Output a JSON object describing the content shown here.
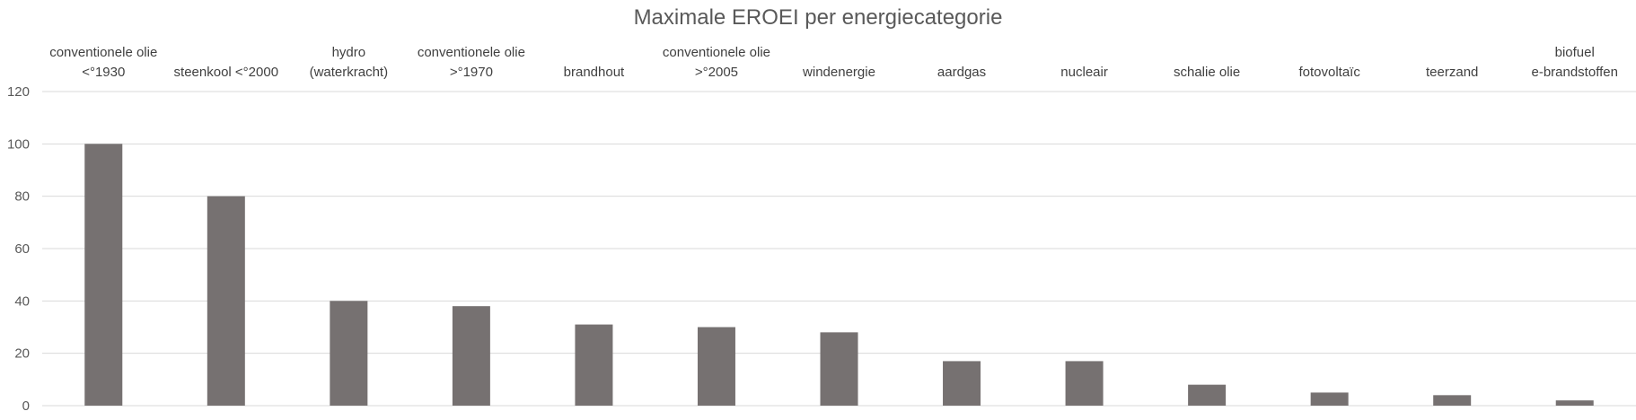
{
  "chart_data": {
    "type": "bar",
    "title": "Maximale EROEI per energiecategorie",
    "xlabel": "",
    "ylabel": "",
    "ylim": [
      0,
      120
    ],
    "yticks": [
      0,
      20,
      40,
      60,
      80,
      100,
      120
    ],
    "grid": true,
    "category_axis_position": "top",
    "bar_color": "#767171",
    "categories": [
      [
        "conventionele olie",
        "<°1930"
      ],
      [
        "steenkool <°2000"
      ],
      [
        "hydro",
        "(waterkracht)"
      ],
      [
        "conventionele olie",
        ">°1970"
      ],
      [
        "brandhout"
      ],
      [
        "conventionele olie",
        ">°2005"
      ],
      [
        "windenergie"
      ],
      [
        "aardgas"
      ],
      [
        "nucleair"
      ],
      [
        "schalie olie"
      ],
      [
        "fotovoltaïc"
      ],
      [
        "teerzand"
      ],
      [
        "biofuel",
        "e-brandstoffen"
      ]
    ],
    "values": [
      100,
      80,
      40,
      38,
      31,
      30,
      28,
      17,
      17,
      8,
      5,
      4,
      2
    ]
  }
}
